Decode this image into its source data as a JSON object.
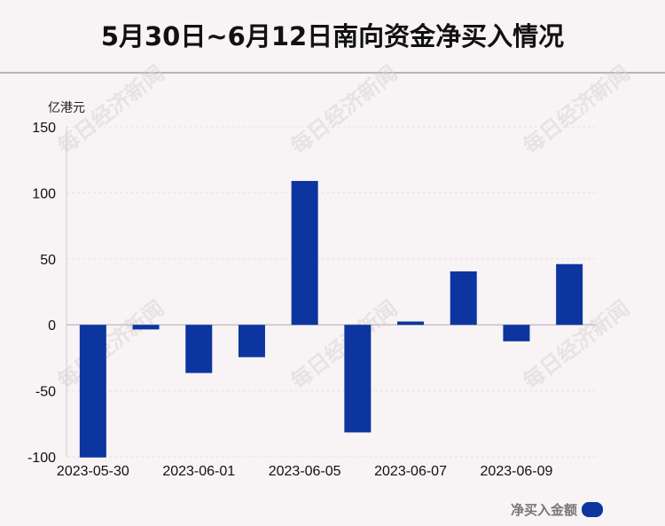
{
  "title": "5月30日~6月12日南向资金净买入情况",
  "watermark_text": "每日经济新闻",
  "chart_data": {
    "type": "bar",
    "categories": [
      "2023-05-30",
      "2023-05-31",
      "2023-06-01",
      "2023-06-02",
      "2023-06-05",
      "2023-06-06",
      "2023-06-07",
      "2023-06-08",
      "2023-06-09",
      "2023-06-12"
    ],
    "x_tick_labels": [
      "2023-05-30",
      "2023-06-01",
      "2023-06-05",
      "2023-06-07",
      "2023-06-09"
    ],
    "series": [
      {
        "name": "净买入金额",
        "values": [
          -100.5,
          -3.5,
          -36.5,
          -24.5,
          109,
          -81.5,
          2.5,
          40.5,
          -12.5,
          46
        ],
        "color": "#0c35a0"
      }
    ],
    "ylabel": "亿港元",
    "ylim": [
      -100,
      150
    ],
    "yticks": [
      -100,
      -50,
      0,
      50,
      100,
      150
    ],
    "grid": true,
    "legend_position": "bottom-right"
  }
}
